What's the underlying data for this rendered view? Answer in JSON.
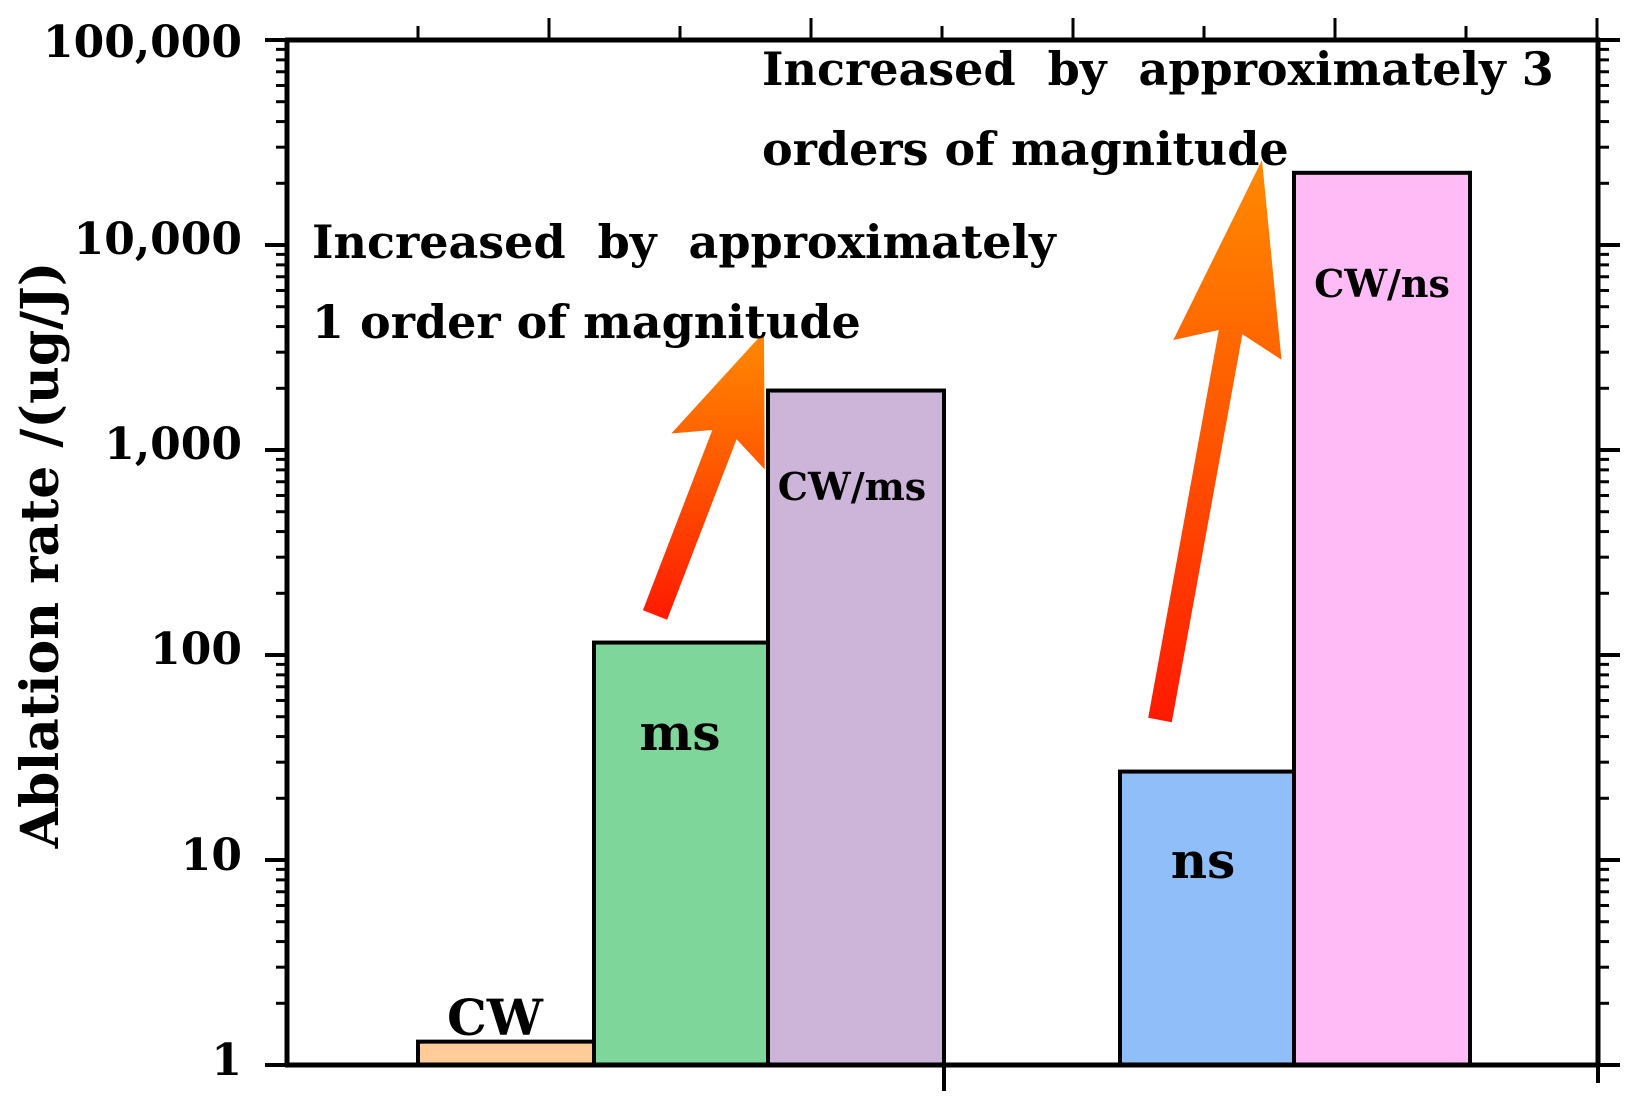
{
  "chart_data": {
    "type": "bar",
    "yscale": "log",
    "ylabel": "Ablation rate /(ug/J)",
    "ylim": [
      1,
      100000
    ],
    "ytick_values": [
      1,
      10,
      100,
      1000,
      10000,
      100000
    ],
    "ytick_labels": [
      "1",
      "10",
      "100",
      "1,000",
      "10,000",
      "100,000"
    ],
    "categories": [
      "CW",
      "ms",
      "CW/ms",
      "ns",
      "CW/ns"
    ],
    "values": [
      1.3,
      115,
      1950,
      27,
      22500
    ],
    "colors": [
      "#FFCC99",
      "#7FD69A",
      "#CDB4D9",
      "#8FBEF8",
      "#FFBBF6"
    ],
    "bar_labels": [
      "CW",
      "ms",
      "CW/ms",
      "ns",
      "CW/ns"
    ],
    "annotations": [
      {
        "lines": [
          "Increased  by  approximately",
          "1 order of magnitude"
        ],
        "from": "ms",
        "to": "CW/ms"
      },
      {
        "lines": [
          "Increased  by  approximately 3",
          "orders of magnitude"
        ],
        "from": "ns",
        "to": "CW/ns"
      }
    ],
    "arrow_color": "#FF3D00"
  }
}
